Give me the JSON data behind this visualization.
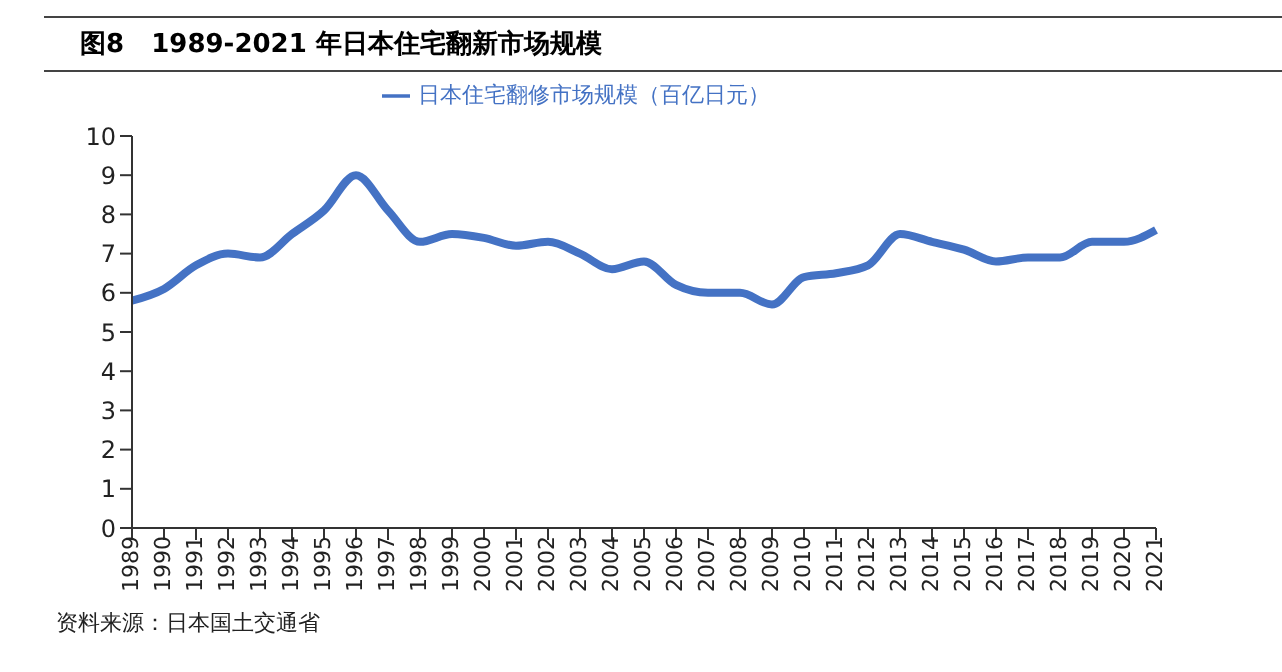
{
  "chart_data": {
    "type": "line",
    "title": "图8   1989-2021 年日本住宅翻新市场规模",
    "categories": [
      "1989",
      "1990",
      "1991",
      "1992",
      "1993",
      "1994",
      "1995",
      "1996",
      "1997",
      "1998",
      "1999",
      "2000",
      "2001",
      "2002",
      "2003",
      "2004",
      "2005",
      "2006",
      "2007",
      "2008",
      "2009",
      "2010",
      "2011",
      "2012",
      "2013",
      "2014",
      "2015",
      "2016",
      "2017",
      "2018",
      "2019",
      "2020",
      "2021"
    ],
    "series": [
      {
        "name": "日本住宅翻修市场规模（百亿日元）",
        "color": "#4472c4",
        "values": [
          5.8,
          6.1,
          6.7,
          7.0,
          6.9,
          7.5,
          8.1,
          9.0,
          8.1,
          7.3,
          7.5,
          7.4,
          7.2,
          7.3,
          7.0,
          6.6,
          6.8,
          6.2,
          6.0,
          6.0,
          5.7,
          6.4,
          6.5,
          6.7,
          7.5,
          7.3,
          7.1,
          6.8,
          6.9,
          6.9,
          7.3,
          7.3,
          7.6
        ]
      }
    ],
    "ylim": [
      0,
      10
    ],
    "yticks": [
      0,
      1,
      2,
      3,
      4,
      5,
      6,
      7,
      8,
      9,
      10
    ],
    "grid": false,
    "legend": "top",
    "marker": "none",
    "line_style": "solid",
    "annotations": [
      "资料来源：日本国土交通省"
    ]
  }
}
